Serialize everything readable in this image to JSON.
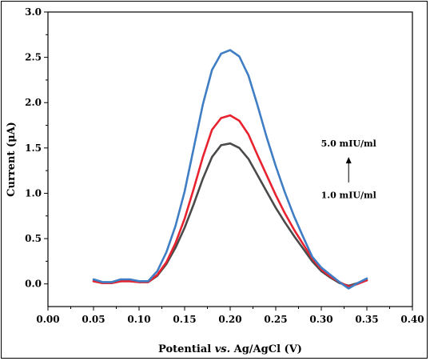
{
  "chart_data": {
    "type": "line",
    "title": "",
    "xlabel_parts": [
      "Potential ",
      "vs.",
      " Ag/AgCl (V)"
    ],
    "ylabel": "Current (μA)",
    "xlim": [
      0.0,
      0.4
    ],
    "ylim": [
      -0.25,
      3.0
    ],
    "xticks": [
      "0.00",
      "0.05",
      "0.10",
      "0.15",
      "0.20",
      "0.25",
      "0.30",
      "0.35",
      "0.40"
    ],
    "yticks": [
      "0.0",
      "0.5",
      "1.0",
      "1.5",
      "2.0",
      "2.5",
      "3.0"
    ],
    "grid": false,
    "annotations": {
      "top": "5.0 mIU/ml",
      "bottom": "1.0 mIU/ml"
    },
    "x": [
      0.05,
      0.06,
      0.07,
      0.08,
      0.09,
      0.1,
      0.11,
      0.12,
      0.13,
      0.14,
      0.15,
      0.16,
      0.17,
      0.18,
      0.19,
      0.2,
      0.21,
      0.22,
      0.23,
      0.24,
      0.25,
      0.26,
      0.27,
      0.28,
      0.29,
      0.3,
      0.31,
      0.32,
      0.33,
      0.34,
      0.35
    ],
    "series": [
      {
        "color": "#4a4a4a",
        "values": [
          0.03,
          0.01,
          0.01,
          0.03,
          0.03,
          0.02,
          0.02,
          0.09,
          0.22,
          0.4,
          0.62,
          0.88,
          1.16,
          1.4,
          1.53,
          1.55,
          1.5,
          1.38,
          1.2,
          1.02,
          0.84,
          0.68,
          0.53,
          0.39,
          0.25,
          0.14,
          0.07,
          0.01,
          -0.02,
          0.01,
          0.04
        ]
      },
      {
        "color": "#e8232f",
        "values": [
          0.03,
          0.01,
          0.01,
          0.03,
          0.03,
          0.02,
          0.02,
          0.1,
          0.24,
          0.45,
          0.72,
          1.05,
          1.4,
          1.7,
          1.83,
          1.86,
          1.8,
          1.65,
          1.42,
          1.2,
          0.98,
          0.78,
          0.6,
          0.44,
          0.28,
          0.16,
          0.08,
          0.02,
          -0.03,
          0.0,
          0.04
        ]
      },
      {
        "color": "#3f7ec4",
        "values": [
          0.05,
          0.02,
          0.02,
          0.05,
          0.05,
          0.03,
          0.03,
          0.14,
          0.35,
          0.64,
          1.02,
          1.5,
          1.98,
          2.36,
          2.54,
          2.58,
          2.51,
          2.3,
          1.97,
          1.62,
          1.3,
          1.01,
          0.75,
          0.52,
          0.3,
          0.18,
          0.1,
          0.02,
          -0.05,
          0.01,
          0.06
        ]
      }
    ]
  }
}
